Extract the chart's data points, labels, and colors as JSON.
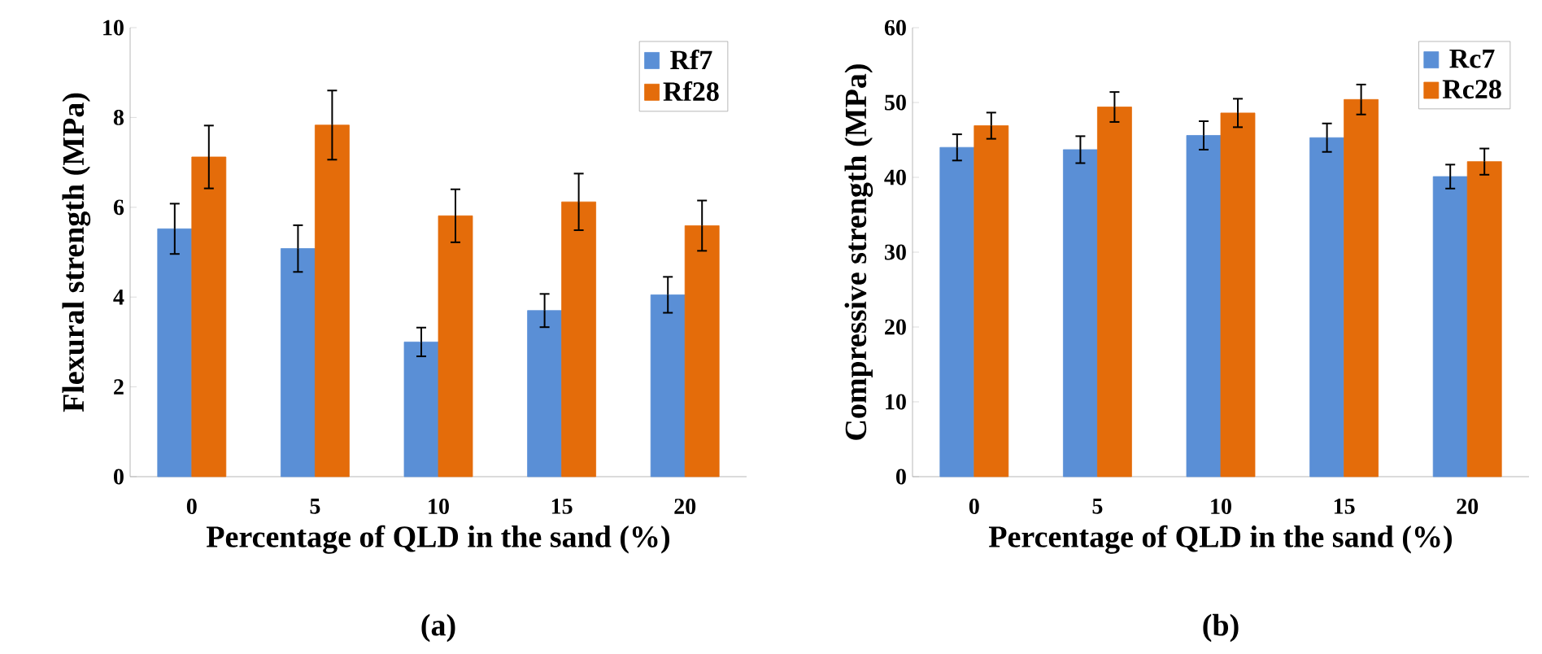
{
  "chart_data": [
    {
      "type": "bar",
      "xlabel": "Percentage of QLD in the sand (%)",
      "ylabel": "Flexural strength (MPa)",
      "annotations": [
        "(a)"
      ],
      "categories": [
        "0",
        "5",
        "10",
        "15",
        "20"
      ],
      "ylim": [
        0,
        10
      ],
      "yticks": [
        0,
        2,
        4,
        6,
        8,
        10
      ],
      "legend": "top right",
      "series": [
        {
          "name": "Rf7",
          "color": "#5a8fd6",
          "values": [
            5.52,
            5.08,
            3.0,
            3.7,
            4.05
          ],
          "errors": [
            0.56,
            0.52,
            0.32,
            0.37,
            0.4
          ]
        },
        {
          "name": "Rf28",
          "color": "#e46c0a",
          "values": [
            7.12,
            7.83,
            5.81,
            6.12,
            5.59
          ],
          "errors": [
            0.7,
            0.77,
            0.59,
            0.63,
            0.56
          ]
        }
      ]
    },
    {
      "type": "bar",
      "xlabel": "Percentage of QLD in the sand (%)",
      "ylabel": "Compressive strength (MPa)",
      "annotations": [
        "(b)"
      ],
      "categories": [
        "0",
        "5",
        "10",
        "15",
        "20"
      ],
      "ylim": [
        0,
        60
      ],
      "yticks": [
        0,
        10,
        20,
        30,
        40,
        50,
        60
      ],
      "legend": "top right",
      "series": [
        {
          "name": "Rc7",
          "color": "#5a8fd6",
          "values": [
            44.0,
            43.7,
            45.6,
            45.3,
            40.1
          ],
          "errors": [
            1.75,
            1.8,
            1.9,
            1.9,
            1.6
          ]
        },
        {
          "name": "Rc28",
          "color": "#e46c0a",
          "values": [
            46.9,
            49.4,
            48.6,
            50.4,
            42.1
          ],
          "errors": [
            1.75,
            2.0,
            1.9,
            2.0,
            1.75
          ]
        }
      ]
    }
  ]
}
